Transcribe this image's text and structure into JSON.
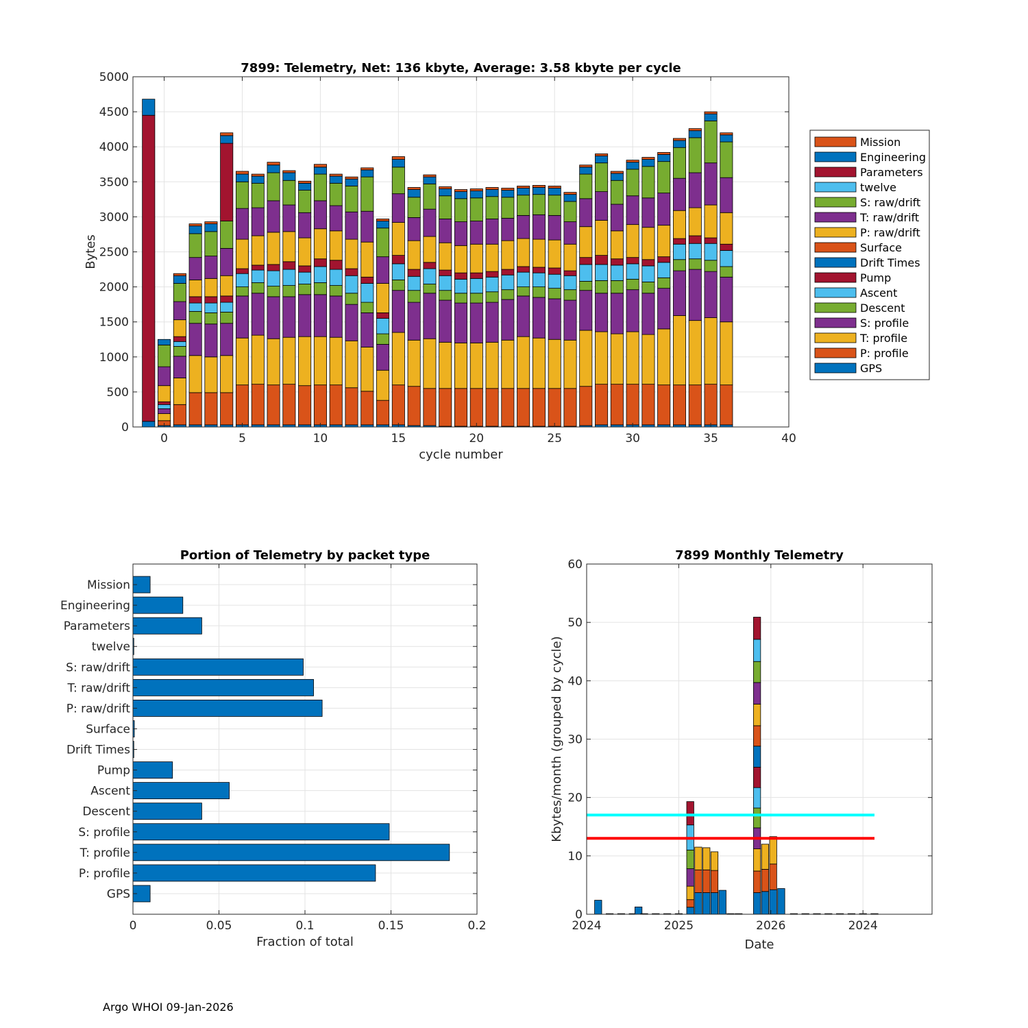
{
  "colors": {
    "blue": "#0072BD",
    "orange": "#D95319",
    "yellow": "#EDB120",
    "purple": "#7E2F8E",
    "green": "#77AC30",
    "lightblue": "#4DBEEE",
    "darkred": "#A2142F",
    "cyan_line": "#00FFFF",
    "red_line": "#FF0000"
  },
  "footer": "Argo WHOI 09-Jan-2026",
  "chart_data": [
    {
      "type": "bar",
      "stacked": true,
      "title": "7899: Telemetry, Net:    136 kbyte,  Average: 3.58 kbyte per cycle",
      "xlabel": "cycle number",
      "ylabel": "Bytes",
      "xlim": [
        -2,
        40
      ],
      "ylim": [
        0,
        5000
      ],
      "xticks": [
        0,
        5,
        10,
        15,
        20,
        25,
        30,
        35,
        40
      ],
      "yticks": [
        0,
        500,
        1000,
        1500,
        2000,
        2500,
        3000,
        3500,
        4000,
        4500,
        5000
      ],
      "grid": true,
      "legend_position": "right",
      "series_order_bottom_to_top": [
        "GPS",
        "P: profile",
        "T: profile",
        "S: profile",
        "Descent",
        "Ascent",
        "Pump",
        "Drift Times",
        "Surface",
        "P: raw/drift",
        "T: raw/drift",
        "S: raw/drift",
        "twelve",
        "Parameters",
        "Engineering",
        "Mission"
      ],
      "series_colors": [
        "blue",
        "orange",
        "yellow",
        "purple",
        "green",
        "lightblue",
        "darkred",
        "blue",
        "orange",
        "yellow",
        "purple",
        "green",
        "lightblue",
        "darkred",
        "blue",
        "orange"
      ],
      "legend_order": [
        "Mission",
        "Engineering",
        "Parameters",
        "twelve",
        "S: raw/drift",
        "T: raw/drift",
        "P: raw/drift",
        "Surface",
        "Drift Times",
        "Pump",
        "Ascent",
        "Descent",
        "S: profile",
        "T: profile",
        "P: profile",
        "GPS"
      ],
      "cycles": [
        {
          "x": -1,
          "v": [
            80,
            0,
            0,
            0,
            0,
            0,
            0,
            0,
            0,
            0,
            0,
            0,
            0,
            4370,
            230,
            0
          ]
        },
        {
          "x": 0,
          "v": [
            20,
            70,
            100,
            70,
            0,
            60,
            40,
            0,
            0,
            230,
            270,
            310,
            0,
            0,
            80,
            0
          ]
        },
        {
          "x": 1,
          "v": [
            30,
            290,
            380,
            310,
            140,
            70,
            70,
            0,
            0,
            240,
            260,
            260,
            0,
            0,
            110,
            30
          ]
        },
        {
          "x": 2,
          "v": [
            30,
            460,
            530,
            460,
            170,
            120,
            90,
            0,
            0,
            240,
            320,
            340,
            0,
            0,
            110,
            30
          ]
        },
        {
          "x": 3,
          "v": [
            30,
            460,
            510,
            470,
            160,
            140,
            90,
            0,
            0,
            260,
            320,
            350,
            0,
            0,
            110,
            30
          ]
        },
        {
          "x": 4,
          "v": [
            30,
            460,
            530,
            460,
            160,
            140,
            90,
            0,
            0,
            290,
            390,
            390,
            0,
            1110,
            110,
            40
          ]
        },
        {
          "x": 5,
          "v": [
            30,
            570,
            670,
            600,
            130,
            190,
            70,
            0,
            0,
            420,
            440,
            380,
            0,
            0,
            110,
            40
          ]
        },
        {
          "x": 6,
          "v": [
            30,
            580,
            700,
            600,
            150,
            180,
            70,
            0,
            0,
            420,
            400,
            350,
            0,
            0,
            100,
            30
          ]
        },
        {
          "x": 7,
          "v": [
            30,
            570,
            660,
            600,
            150,
            220,
            90,
            0,
            0,
            460,
            450,
            400,
            0,
            0,
            110,
            40
          ]
        },
        {
          "x": 8,
          "v": [
            30,
            580,
            670,
            580,
            160,
            230,
            110,
            0,
            0,
            430,
            380,
            350,
            0,
            0,
            110,
            30
          ]
        },
        {
          "x": 9,
          "v": [
            30,
            560,
            700,
            600,
            150,
            170,
            90,
            0,
            0,
            400,
            360,
            320,
            0,
            0,
            100,
            30
          ]
        },
        {
          "x": 10,
          "v": [
            30,
            570,
            690,
            600,
            170,
            230,
            110,
            0,
            0,
            430,
            400,
            380,
            0,
            0,
            100,
            40
          ]
        },
        {
          "x": 11,
          "v": [
            30,
            570,
            680,
            590,
            150,
            230,
            130,
            0,
            0,
            420,
            360,
            320,
            0,
            0,
            100,
            30
          ]
        },
        {
          "x": 12,
          "v": [
            30,
            530,
            670,
            520,
            160,
            250,
            100,
            0,
            0,
            420,
            390,
            370,
            0,
            0,
            100,
            30
          ]
        },
        {
          "x": 13,
          "v": [
            30,
            480,
            630,
            490,
            150,
            270,
            90,
            0,
            0,
            500,
            440,
            490,
            0,
            0,
            100,
            30
          ]
        },
        {
          "x": 14,
          "v": [
            30,
            350,
            430,
            370,
            150,
            220,
            80,
            0,
            0,
            420,
            380,
            410,
            0,
            0,
            100,
            30
          ]
        },
        {
          "x": 15,
          "v": [
            30,
            570,
            750,
            600,
            150,
            230,
            120,
            0,
            0,
            470,
            410,
            380,
            0,
            0,
            110,
            40
          ]
        },
        {
          "x": 16,
          "v": [
            20,
            560,
            660,
            540,
            170,
            200,
            100,
            0,
            0,
            410,
            330,
            290,
            0,
            0,
            110,
            30
          ]
        },
        {
          "x": 17,
          "v": [
            20,
            530,
            710,
            650,
            130,
            220,
            90,
            0,
            0,
            370,
            390,
            360,
            0,
            0,
            100,
            30
          ]
        },
        {
          "x": 18,
          "v": [
            10,
            540,
            660,
            600,
            140,
            210,
            80,
            0,
            0,
            390,
            340,
            330,
            0,
            0,
            100,
            30
          ]
        },
        {
          "x": 19,
          "v": [
            10,
            540,
            650,
            570,
            140,
            200,
            90,
            0,
            0,
            390,
            340,
            330,
            0,
            0,
            100,
            30
          ]
        },
        {
          "x": 20,
          "v": [
            10,
            540,
            650,
            570,
            140,
            210,
            80,
            0,
            0,
            410,
            330,
            330,
            0,
            0,
            100,
            30
          ]
        },
        {
          "x": 21,
          "v": [
            10,
            540,
            660,
            570,
            150,
            210,
            80,
            0,
            0,
            390,
            360,
            320,
            0,
            0,
            100,
            30
          ]
        },
        {
          "x": 22,
          "v": [
            10,
            540,
            690,
            580,
            140,
            210,
            80,
            0,
            0,
            410,
            320,
            300,
            0,
            0,
            100,
            30
          ]
        },
        {
          "x": 23,
          "v": [
            10,
            540,
            740,
            580,
            130,
            210,
            80,
            0,
            0,
            400,
            330,
            290,
            0,
            0,
            100,
            30
          ]
        },
        {
          "x": 24,
          "v": [
            10,
            540,
            720,
            580,
            150,
            200,
            80,
            0,
            0,
            400,
            350,
            290,
            0,
            0,
            100,
            30
          ]
        },
        {
          "x": 25,
          "v": [
            10,
            540,
            700,
            580,
            150,
            200,
            90,
            0,
            0,
            400,
            350,
            290,
            0,
            0,
            100,
            30
          ]
        },
        {
          "x": 26,
          "v": [
            10,
            540,
            690,
            570,
            150,
            200,
            70,
            0,
            0,
            380,
            320,
            290,
            0,
            0,
            100,
            30
          ]
        },
        {
          "x": 27,
          "v": [
            20,
            560,
            800,
            570,
            130,
            240,
            100,
            0,
            0,
            440,
            400,
            350,
            0,
            0,
            100,
            30
          ]
        },
        {
          "x": 28,
          "v": [
            30,
            580,
            750,
            550,
            180,
            230,
            130,
            0,
            0,
            500,
            410,
            410,
            0,
            0,
            100,
            30
          ]
        },
        {
          "x": 29,
          "v": [
            30,
            580,
            720,
            580,
            180,
            220,
            90,
            0,
            0,
            400,
            380,
            340,
            0,
            0,
            100,
            30
          ]
        },
        {
          "x": 30,
          "v": [
            30,
            580,
            750,
            600,
            150,
            220,
            90,
            0,
            0,
            470,
            410,
            380,
            0,
            0,
            100,
            30
          ]
        },
        {
          "x": 31,
          "v": [
            30,
            580,
            710,
            590,
            160,
            230,
            90,
            0,
            0,
            460,
            420,
            450,
            0,
            0,
            100,
            30
          ]
        },
        {
          "x": 32,
          "v": [
            30,
            570,
            800,
            580,
            150,
            220,
            80,
            0,
            0,
            450,
            460,
            450,
            0,
            0,
            100,
            30
          ]
        },
        {
          "x": 33,
          "v": [
            30,
            570,
            990,
            640,
            160,
            220,
            80,
            0,
            0,
            400,
            460,
            440,
            0,
            0,
            100,
            30
          ]
        },
        {
          "x": 34,
          "v": [
            30,
            570,
            920,
            730,
            150,
            220,
            110,
            0,
            0,
            400,
            500,
            500,
            0,
            0,
            100,
            30
          ]
        },
        {
          "x": 35,
          "v": [
            30,
            580,
            950,
            660,
            160,
            240,
            80,
            0,
            0,
            470,
            600,
            600,
            0,
            0,
            100,
            30
          ]
        },
        {
          "x": 36,
          "v": [
            30,
            570,
            900,
            640,
            150,
            230,
            90,
            0,
            0,
            450,
            500,
            510,
            0,
            0,
            100,
            30
          ]
        }
      ]
    },
    {
      "type": "bar",
      "orientation": "horizontal",
      "title": "Portion of Telemetry by packet type",
      "xlabel": "Fraction of total",
      "ylabel": "",
      "xlim": [
        0,
        0.2
      ],
      "xticks": [
        0,
        0.05,
        0.1,
        0.15,
        0.2
      ],
      "xtick_labels": [
        "0",
        "0.05",
        "0.1",
        "0.15",
        "0.2"
      ],
      "grid": true,
      "categories": [
        "GPS",
        "P: profile",
        "T: profile",
        "S: profile",
        "Descent",
        "Ascent",
        "Pump",
        "Drift Times",
        "Surface",
        "P: raw/drift",
        "T: raw/drift",
        "S: raw/drift",
        "twelve",
        "Parameters",
        "Engineering",
        "Mission"
      ],
      "values": [
        0.01,
        0.141,
        0.184,
        0.149,
        0.04,
        0.056,
        0.023,
        0.0005,
        0.0008,
        0.11,
        0.105,
        0.099,
        0.0005,
        0.04,
        0.029,
        0.01
      ]
    },
    {
      "type": "bar",
      "stacked": true,
      "title": "7899 Monthly Telemetry",
      "xlabel": "Date",
      "ylabel": "Kbytes/month (grouped by cycle)",
      "ylim": [
        0,
        60
      ],
      "yticks": [
        0,
        10,
        20,
        30,
        40,
        50,
        60
      ],
      "xlim": [
        0,
        30
      ],
      "xticks": [
        0,
        8,
        16,
        24
      ],
      "xtick_labels": [
        "2024",
        "2025",
        "2026",
        "2024"
      ],
      "grid": true,
      "hlines": [
        {
          "y": 17,
          "color": "cyan_line",
          "x_from": 0,
          "x_to": 25
        },
        {
          "y": 13,
          "color": "red_line",
          "x_from": 0,
          "x_to": 25
        }
      ],
      "months": [
        {
          "x": 1,
          "v": [
            2.4
          ]
        },
        {
          "x": 2,
          "v": [
            0.1
          ]
        },
        {
          "x": 3,
          "v": [
            0.1
          ]
        },
        {
          "x": 4,
          "v": [
            0.1
          ]
        },
        {
          "x": 4.5,
          "v": [
            1.25
          ]
        },
        {
          "x": 5,
          "v": [
            0.1
          ]
        },
        {
          "x": 6,
          "v": [
            0.1
          ]
        },
        {
          "x": 7,
          "v": [
            0.1
          ]
        },
        {
          "x": 8,
          "v": [
            0.1
          ]
        },
        {
          "x": 9,
          "v": [
            1.2,
            1.3,
            2.3,
            3.0,
            3.2,
            4.3,
            4.0
          ]
        },
        {
          "x": 9.7,
          "v": [
            3.7,
            3.9,
            3.9
          ]
        },
        {
          "x": 10.4,
          "v": [
            3.7,
            3.9,
            3.8
          ]
        },
        {
          "x": 11.1,
          "v": [
            3.7,
            3.8,
            3.2
          ]
        },
        {
          "x": 11.8,
          "v": [
            4.1
          ]
        },
        {
          "x": 12.5,
          "v": [
            0.1
          ]
        },
        {
          "x": 13.2,
          "v": [
            0.1
          ]
        },
        {
          "x": 14.8,
          "v": [
            3.7,
            3.7,
            3.8,
            3.6,
            3.4,
            3.5,
            3.5,
            3.6,
            3.5,
            3.7,
            3.7,
            3.6,
            3.8,
            3.8
          ]
        },
        {
          "x": 15.5,
          "v": [
            3.9,
            3.8,
            4.3
          ]
        },
        {
          "x": 16.2,
          "v": [
            4.2,
            4.4,
            4.7
          ]
        },
        {
          "x": 16.9,
          "v": [
            4.4
          ]
        },
        {
          "x": 18,
          "v": [
            0.1
          ]
        },
        {
          "x": 19,
          "v": [
            0.1
          ]
        },
        {
          "x": 20,
          "v": [
            0.1
          ]
        },
        {
          "x": 21,
          "v": [
            0.1
          ]
        },
        {
          "x": 22,
          "v": [
            0.1
          ]
        },
        {
          "x": 23,
          "v": [
            0.1
          ]
        },
        {
          "x": 24,
          "v": [
            0.1
          ]
        },
        {
          "x": 25,
          "v": [
            0.1
          ]
        }
      ],
      "stack_colors": [
        "blue",
        "orange",
        "yellow",
        "purple",
        "green",
        "lightblue",
        "darkred"
      ]
    }
  ]
}
